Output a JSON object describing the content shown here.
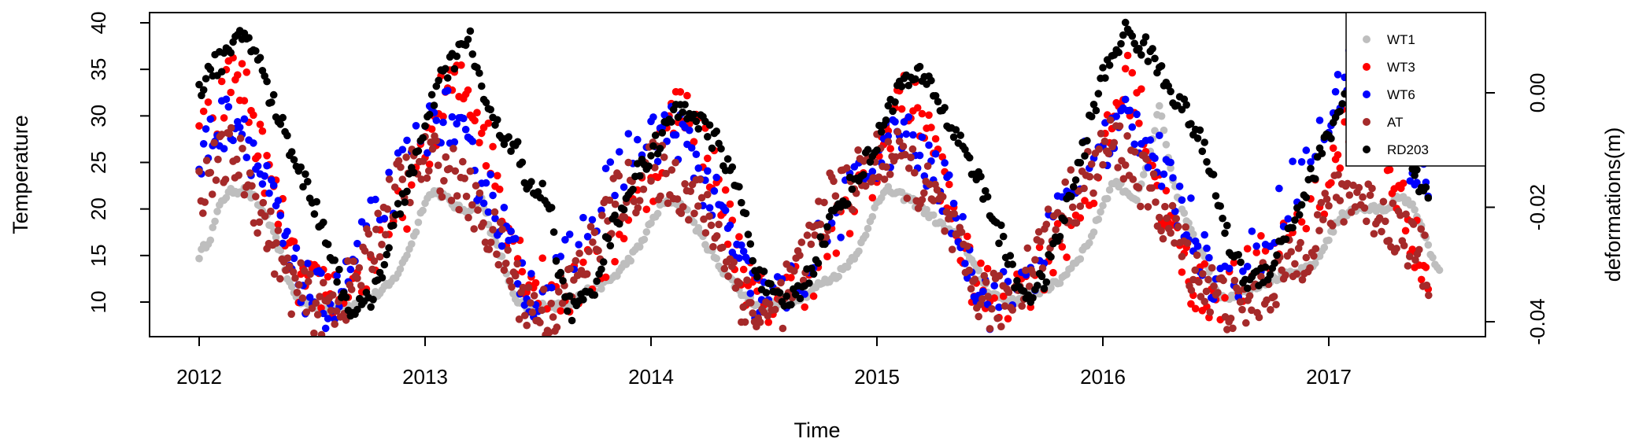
{
  "chart_data": {
    "type": "scatter",
    "title": "",
    "xlabel": "Time",
    "ylabel": "Temperature",
    "y2label": "deformations(m)",
    "xlim": [
      2012,
      2017.5
    ],
    "ylim": [
      7,
      40
    ],
    "y2lim": [
      -0.042,
      0.01
    ],
    "x_ticks": [
      2012,
      2013,
      2014,
      2015,
      2016,
      2017
    ],
    "x_tick_labels": [
      "2012",
      "2013",
      "2014",
      "2015",
      "2016",
      "2017"
    ],
    "y_ticks": [
      10,
      15,
      20,
      25,
      30,
      35,
      40
    ],
    "y_tick_labels": [
      "10",
      "15",
      "20",
      "25",
      "30",
      "35",
      "40"
    ],
    "y2_ticks": [
      -0.04,
      -0.02,
      0.0
    ],
    "y2_tick_labels": [
      "-0.04",
      "-0.02",
      "0.00"
    ],
    "legend_position": "top-right",
    "grid": false,
    "series": [
      {
        "name": "WT1",
        "color": "#bebebe",
        "x": [
          2012.0,
          2012.05,
          2012.1,
          2012.15,
          2012.2,
          2012.25,
          2012.3,
          2012.35,
          2012.4,
          2012.45,
          2012.5,
          2012.55,
          2012.6,
          2012.65,
          2012.7,
          2012.75,
          2012.8,
          2012.85,
          2012.9,
          2012.95,
          2013.0,
          2013.05,
          2013.1,
          2013.15,
          2013.2,
          2013.25,
          2013.3,
          2013.35,
          2013.4,
          2013.45,
          2013.5,
          2013.55,
          2013.6,
          2013.65,
          2013.7,
          2013.75,
          2013.8,
          2013.85,
          2013.9,
          2013.95,
          2014.0,
          2014.05,
          2014.1,
          2014.15,
          2014.2,
          2014.25,
          2014.3,
          2014.35,
          2014.4,
          2014.45,
          2014.5,
          2014.55,
          2014.6,
          2014.65,
          2014.7,
          2014.75,
          2014.8,
          2014.85,
          2014.9,
          2014.95,
          2015.0,
          2015.05,
          2015.1,
          2015.15,
          2015.2,
          2015.25,
          2015.3,
          2015.35,
          2015.4,
          2015.45,
          2015.5,
          2015.55,
          2015.6,
          2015.65,
          2015.7,
          2015.75,
          2015.8,
          2015.85,
          2015.9,
          2015.95,
          2016.0,
          2016.05,
          2016.1,
          2016.15,
          2016.2,
          2016.25,
          2016.3,
          2016.35,
          2016.4,
          2016.45,
          2016.5,
          2016.55,
          2016.6,
          2016.65,
          2016.7,
          2016.75,
          2016.8,
          2016.85,
          2016.9,
          2016.95,
          2017.0,
          2017.05,
          2017.1,
          2017.15,
          2017.2,
          2017.25,
          2017.3,
          2017.35,
          2017.4,
          2017.45,
          2017.5
        ],
        "y": [
          15,
          17,
          21,
          22,
          22,
          21,
          19,
          16,
          12,
          10,
          9.5,
          9.3,
          9.2,
          9.5,
          10,
          10.5,
          11,
          12,
          14,
          17,
          21,
          22,
          21,
          20,
          20,
          21,
          17,
          14,
          10,
          9.5,
          9.5,
          9.7,
          9.5,
          10,
          11,
          11.5,
          12,
          13,
          14.5,
          16,
          18.5,
          20.5,
          21,
          20,
          18,
          16,
          14,
          12.5,
          11,
          10,
          9.8,
          9.7,
          10,
          10.5,
          11,
          12,
          12.5,
          13.5,
          15,
          17,
          21,
          22,
          21.5,
          21,
          20,
          19,
          18,
          17,
          15.5,
          13,
          11,
          10.5,
          10,
          10.5,
          11,
          11.5,
          12,
          13.5,
          15,
          17,
          20.5,
          23,
          22,
          21,
          25,
          31,
          24,
          20,
          17,
          15,
          11,
          10.5,
          11,
          11.5,
          12,
          12.5,
          12.8,
          13,
          13.5,
          14.5,
          17,
          19,
          20,
          20,
          20,
          20,
          21,
          21,
          19,
          15,
          13
        ]
      },
      {
        "name": "WT3",
        "color": "#ff0000",
        "x": [
          2012.0,
          2012.1,
          2012.15,
          2012.2,
          2012.25,
          2012.3,
          2012.35,
          2012.4,
          2012.45,
          2012.5,
          2012.55,
          2012.6,
          2012.7,
          2012.8,
          2012.9,
          2013.0,
          2013.05,
          2013.1,
          2013.15,
          2013.2,
          2013.25,
          2013.3,
          2013.35,
          2013.4,
          2013.45,
          2013.5,
          2013.6,
          2013.7,
          2013.8,
          2013.9,
          2014.0,
          2014.05,
          2014.1,
          2014.15,
          2014.2,
          2014.25,
          2014.3,
          2014.35,
          2014.4,
          2014.45,
          2014.5,
          2014.6,
          2014.7,
          2014.8,
          2014.9,
          2015.0,
          2015.05,
          2015.1,
          2015.15,
          2015.2,
          2015.25,
          2015.3,
          2015.35,
          2015.4,
          2015.45,
          2015.5,
          2015.6,
          2015.7,
          2015.8,
          2015.9,
          2016.0,
          2016.05,
          2016.1,
          2016.15,
          2016.2,
          2016.25,
          2016.3,
          2016.35,
          2016.4,
          2016.45,
          2016.5,
          2016.6,
          2016.7,
          2016.8,
          2016.9,
          2017.0,
          2017.05,
          2017.1,
          2017.15,
          2017.2,
          2017.25,
          2017.3,
          2017.35,
          2017.4,
          2017.45
        ],
        "y": [
          27,
          31,
          35,
          33,
          28,
          24,
          20,
          15,
          12,
          11,
          12,
          11,
          12,
          15,
          20,
          25,
          30,
          33,
          33,
          32,
          29,
          25,
          20,
          16,
          13,
          12,
          11,
          12,
          15,
          19,
          23,
          27,
          30,
          31,
          29,
          26,
          22,
          18,
          14,
          11,
          10,
          11,
          13,
          16,
          20,
          24,
          29,
          32,
          31,
          30,
          27,
          22,
          18,
          14,
          11,
          11,
          11,
          13,
          16,
          20,
          25,
          30,
          34,
          32,
          27,
          22,
          18,
          15,
          12,
          11,
          11,
          12,
          14,
          17,
          20,
          23,
          27,
          31,
          32,
          29,
          25,
          22,
          19,
          15,
          12
        ]
      },
      {
        "name": "WT6",
        "color": "#0000ff",
        "x": [
          2012.0,
          2012.05,
          2012.1,
          2012.15,
          2012.2,
          2012.25,
          2012.3,
          2012.35,
          2012.4,
          2012.45,
          2012.5,
          2012.55,
          2012.6,
          2012.65,
          2012.7,
          2012.8,
          2012.9,
          2013.0,
          2013.05,
          2013.1,
          2013.15,
          2013.2,
          2013.25,
          2013.3,
          2013.35,
          2013.4,
          2013.45,
          2013.5,
          2013.6,
          2013.7,
          2013.8,
          2013.9,
          2014.0,
          2014.05,
          2014.1,
          2014.15,
          2014.2,
          2014.25,
          2014.3,
          2014.35,
          2014.4,
          2014.45,
          2014.5,
          2014.6,
          2014.7,
          2014.8,
          2014.9,
          2015.0,
          2015.05,
          2015.1,
          2015.15,
          2015.2,
          2015.25,
          2015.3,
          2015.35,
          2015.4,
          2015.45,
          2015.5,
          2015.6,
          2015.7,
          2015.8,
          2015.9,
          2016.0,
          2016.05,
          2016.1,
          2016.15,
          2016.2,
          2016.25,
          2016.3,
          2016.35,
          2016.4,
          2016.45,
          2016.5,
          2016.6,
          2016.7,
          2016.8,
          2016.9,
          2017.0,
          2017.05,
          2017.1,
          2017.15,
          2017.2,
          2017.25,
          2017.3,
          2017.35,
          2017.4,
          2017.45
        ],
        "y": [
          24,
          28,
          29,
          30,
          29,
          25,
          22,
          19,
          14,
          12,
          11,
          10,
          10,
          12,
          15,
          20,
          24,
          28,
          30,
          30,
          28,
          25,
          23,
          21,
          18,
          14,
          12,
          11,
          13,
          17,
          22,
          26,
          27,
          28,
          29,
          27,
          25,
          22,
          20,
          17,
          14,
          11,
          10,
          11,
          14,
          18,
          22,
          26,
          27,
          28,
          27,
          25,
          24,
          22,
          19,
          15,
          12,
          10,
          11,
          14,
          19,
          24,
          27,
          28,
          30,
          29,
          27,
          25,
          22,
          20,
          18,
          15,
          12,
          13,
          16,
          21,
          25,
          29,
          33,
          35,
          34,
          32,
          30,
          28,
          26,
          24,
          22
        ]
      },
      {
        "name": "AT",
        "color": "#a52a2a",
        "x": [
          2012.0,
          2012.05,
          2012.1,
          2012.15,
          2012.2,
          2012.25,
          2012.3,
          2012.35,
          2012.4,
          2012.45,
          2012.5,
          2012.55,
          2012.6,
          2012.65,
          2012.7,
          2012.75,
          2012.8,
          2012.85,
          2012.9,
          2012.95,
          2013.0,
          2013.05,
          2013.1,
          2013.15,
          2013.2,
          2013.25,
          2013.3,
          2013.35,
          2013.4,
          2013.45,
          2013.5,
          2013.55,
          2013.6,
          2013.65,
          2013.7,
          2013.75,
          2013.8,
          2013.85,
          2013.9,
          2013.95,
          2014.0,
          2014.05,
          2014.1,
          2014.15,
          2014.2,
          2014.25,
          2014.3,
          2014.35,
          2014.4,
          2014.45,
          2014.5,
          2014.55,
          2014.6,
          2014.65,
          2014.7,
          2014.75,
          2014.8,
          2014.85,
          2014.9,
          2014.95,
          2015.0,
          2015.05,
          2015.1,
          2015.15,
          2015.2,
          2015.25,
          2015.3,
          2015.35,
          2015.4,
          2015.45,
          2015.5,
          2015.55,
          2015.6,
          2015.65,
          2015.7,
          2015.75,
          2015.8,
          2015.85,
          2015.9,
          2015.95,
          2016.0,
          2016.05,
          2016.1,
          2016.15,
          2016.2,
          2016.25,
          2016.3,
          2016.35,
          2016.4,
          2016.45,
          2016.5,
          2016.55,
          2016.6,
          2016.65,
          2016.7,
          2016.75,
          2016.8,
          2016.85,
          2016.9,
          2016.95,
          2017.0,
          2017.05,
          2017.1,
          2017.15,
          2017.2,
          2017.25,
          2017.3,
          2017.35,
          2017.4,
          2017.45
        ],
        "y": [
          22,
          24,
          25,
          26,
          24,
          21,
          18,
          15,
          12,
          11,
          10,
          9,
          10,
          11,
          13,
          15,
          18,
          21,
          23,
          24,
          25,
          25,
          24,
          23,
          21,
          19,
          17,
          15,
          12,
          10,
          9,
          9,
          10,
          12,
          14,
          16,
          19,
          21,
          22,
          23,
          24,
          24,
          23,
          22,
          21,
          19,
          17,
          14,
          11,
          9,
          8,
          9,
          11,
          13,
          16,
          19,
          21,
          22,
          23,
          24,
          25,
          26,
          25,
          24,
          22,
          21,
          19,
          16,
          13,
          11,
          10,
          10,
          11,
          13,
          15,
          17,
          19,
          21,
          22,
          24,
          26,
          27,
          26,
          24,
          22,
          20,
          18,
          16,
          14,
          12,
          11,
          10,
          9,
          10,
          11,
          12,
          13,
          14,
          16,
          18,
          20,
          21,
          22,
          21,
          20,
          19,
          18,
          17,
          15,
          13
        ]
      },
      {
        "name": "RD203",
        "color": "#000000",
        "x": [
          2012.0,
          2012.05,
          2012.1,
          2012.15,
          2012.2,
          2012.25,
          2012.3,
          2012.35,
          2012.4,
          2012.45,
          2012.5,
          2012.55,
          2012.6,
          2012.65,
          2012.7,
          2012.75,
          2012.8,
          2012.85,
          2012.9,
          2012.95,
          2013.0,
          2013.05,
          2013.1,
          2013.15,
          2013.2,
          2013.25,
          2013.3,
          2013.35,
          2013.4,
          2013.45,
          2013.5,
          2013.55,
          2013.6,
          2013.65,
          2013.7,
          2013.75,
          2013.8,
          2013.85,
          2013.9,
          2013.95,
          2014.0,
          2014.05,
          2014.1,
          2014.15,
          2014.2,
          2014.25,
          2014.3,
          2014.35,
          2014.4,
          2014.45,
          2014.5,
          2014.55,
          2014.6,
          2014.65,
          2014.7,
          2014.75,
          2014.8,
          2014.85,
          2014.9,
          2014.95,
          2015.0,
          2015.05,
          2015.1,
          2015.15,
          2015.2,
          2015.25,
          2015.3,
          2015.35,
          2015.4,
          2015.45,
          2015.5,
          2015.55,
          2015.6,
          2015.65,
          2015.7,
          2015.75,
          2015.8,
          2015.85,
          2015.9,
          2015.95,
          2016.0,
          2016.05,
          2016.1,
          2016.15,
          2016.2,
          2016.25,
          2016.3,
          2016.35,
          2016.4,
          2016.45,
          2016.5,
          2016.55,
          2016.6,
          2016.65,
          2016.7,
          2016.75,
          2016.8,
          2016.85,
          2016.9,
          2016.95,
          2017.0,
          2017.05,
          2017.1,
          2017.15,
          2017.2,
          2017.25,
          2017.3,
          2017.35,
          2017.4,
          2017.45
        ],
        "y": [
          33,
          35,
          36,
          37,
          39,
          37,
          33,
          30,
          27,
          24,
          21,
          18,
          14,
          10,
          9,
          10,
          13,
          17,
          21,
          25,
          28,
          33,
          35,
          37,
          38,
          33,
          29,
          28,
          27,
          22,
          22,
          21,
          12,
          9,
          10,
          12,
          16,
          19,
          22,
          24,
          26,
          28,
          30,
          31,
          30,
          28,
          27,
          24,
          21,
          15,
          12,
          10,
          10,
          11,
          13,
          16,
          19,
          21,
          23,
          25,
          27,
          31,
          33,
          34,
          34,
          33,
          30,
          28,
          26,
          23,
          20,
          17,
          13,
          11,
          11,
          13,
          17,
          21,
          25,
          30,
          34,
          37,
          39,
          38,
          37,
          35,
          33,
          31,
          29,
          26,
          22,
          17,
          14,
          12,
          13,
          14,
          17,
          19,
          22,
          25,
          28,
          31,
          33,
          35,
          36,
          32,
          30,
          27,
          23,
          20
        ]
      }
    ]
  }
}
